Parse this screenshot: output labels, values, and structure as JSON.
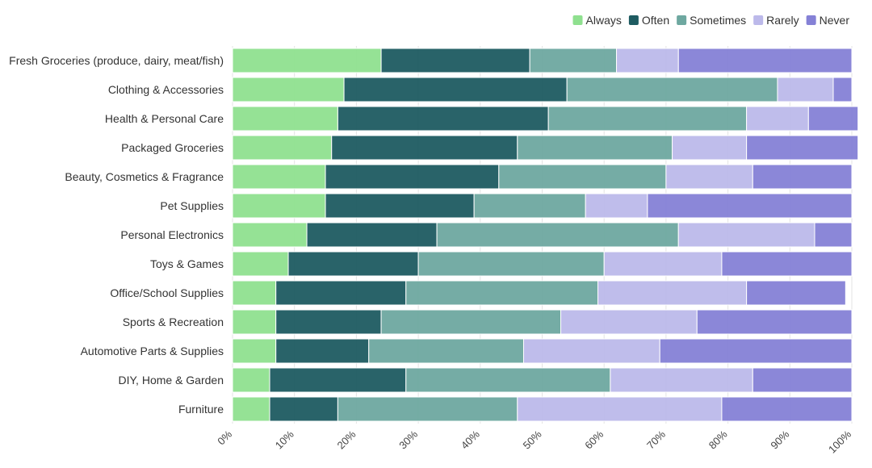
{
  "chart_data": {
    "type": "bar",
    "orientation": "horizontal",
    "stacked": "percent",
    "categories": [
      "Fresh Groceries (produce, dairy, meat/fish)",
      "Clothing & Accessories",
      "Health & Personal Care",
      "Packaged Groceries",
      "Beauty, Cosmetics & Fragrance",
      "Pet Supplies",
      "Personal Electronics",
      "Toys & Games",
      "Office/School Supplies",
      "Sports & Recreation",
      "Automotive Parts & Supplies",
      "DIY, Home & Garden",
      "Furniture"
    ],
    "series": [
      {
        "name": "Always",
        "color": "#8fe08f",
        "values": [
          24,
          18,
          17,
          16,
          15,
          15,
          12,
          9,
          7,
          7,
          7,
          6,
          6
        ]
      },
      {
        "name": "Often",
        "color": "#1e5b61",
        "values": [
          24,
          36,
          34,
          30,
          28,
          24,
          21,
          21,
          21,
          17,
          15,
          22,
          11
        ]
      },
      {
        "name": "Sometimes",
        "color": "#6ea8a0",
        "values": [
          14,
          34,
          32,
          25,
          27,
          18,
          39,
          30,
          31,
          29,
          25,
          33,
          29
        ]
      },
      {
        "name": "Rarely",
        "color": "#bcb9ea",
        "values": [
          10,
          9,
          10,
          12,
          14,
          10,
          22,
          19,
          24,
          22,
          22,
          23,
          33
        ]
      },
      {
        "name": "Never",
        "color": "#8581d6",
        "values": [
          28,
          3,
          8,
          18,
          16,
          33,
          6,
          21,
          16,
          25,
          31,
          16,
          21
        ]
      }
    ],
    "x_ticks": [
      "0%",
      "10%",
      "20%",
      "30%",
      "40%",
      "50%",
      "60%",
      "70%",
      "80%",
      "90%",
      "100%"
    ],
    "xlim": [
      0,
      100
    ],
    "grid": true,
    "legend_position": "top-right",
    "title": "",
    "xlabel": "",
    "ylabel": ""
  }
}
